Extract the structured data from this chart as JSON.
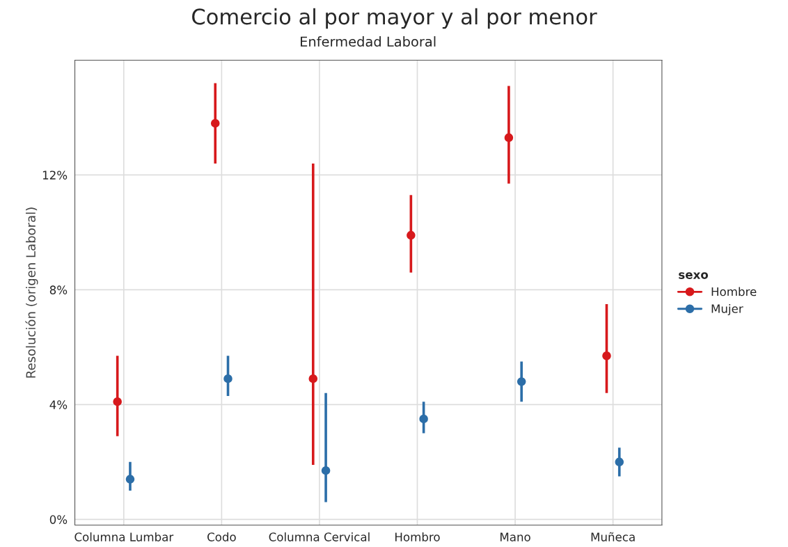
{
  "chart_data": {
    "type": "scatter",
    "title": "Comercio al por mayor y al por menor",
    "subtitle": "Enfermedad Laboral",
    "ylabel": "Resolución (origen Laboral)",
    "legend_title": "sexo",
    "categories": [
      "Columna Lumbar",
      "Codo",
      "Columna Cervical",
      "Hombro",
      "Mano",
      "Muñeca"
    ],
    "series": [
      {
        "name": "Hombre",
        "color": "#d7191c",
        "values": [
          4.1,
          13.8,
          4.9,
          9.9,
          13.3,
          5.7
        ],
        "errors": [
          [
            2.9,
            5.7
          ],
          [
            12.4,
            15.2
          ],
          [
            1.9,
            12.4
          ],
          [
            8.6,
            11.3
          ],
          [
            11.7,
            15.1
          ],
          [
            4.4,
            7.5
          ]
        ]
      },
      {
        "name": "Mujer",
        "color": "#2c6ea8",
        "values": [
          1.4,
          4.9,
          1.7,
          3.5,
          4.8,
          2.0
        ],
        "errors": [
          [
            1.0,
            2.0
          ],
          [
            4.3,
            5.7
          ],
          [
            0.6,
            4.4
          ],
          [
            3.0,
            4.1
          ],
          [
            4.1,
            5.5
          ],
          [
            1.5,
            2.5
          ]
        ]
      }
    ],
    "ylim": [
      -0.2,
      16
    ],
    "yticks": [
      {
        "value": 0,
        "label": "0%"
      },
      {
        "value": 4,
        "label": "4%"
      },
      {
        "value": 8,
        "label": "8%"
      },
      {
        "value": 12,
        "label": "12%"
      }
    ],
    "grid": true,
    "legend": "right",
    "marker": "circle"
  }
}
